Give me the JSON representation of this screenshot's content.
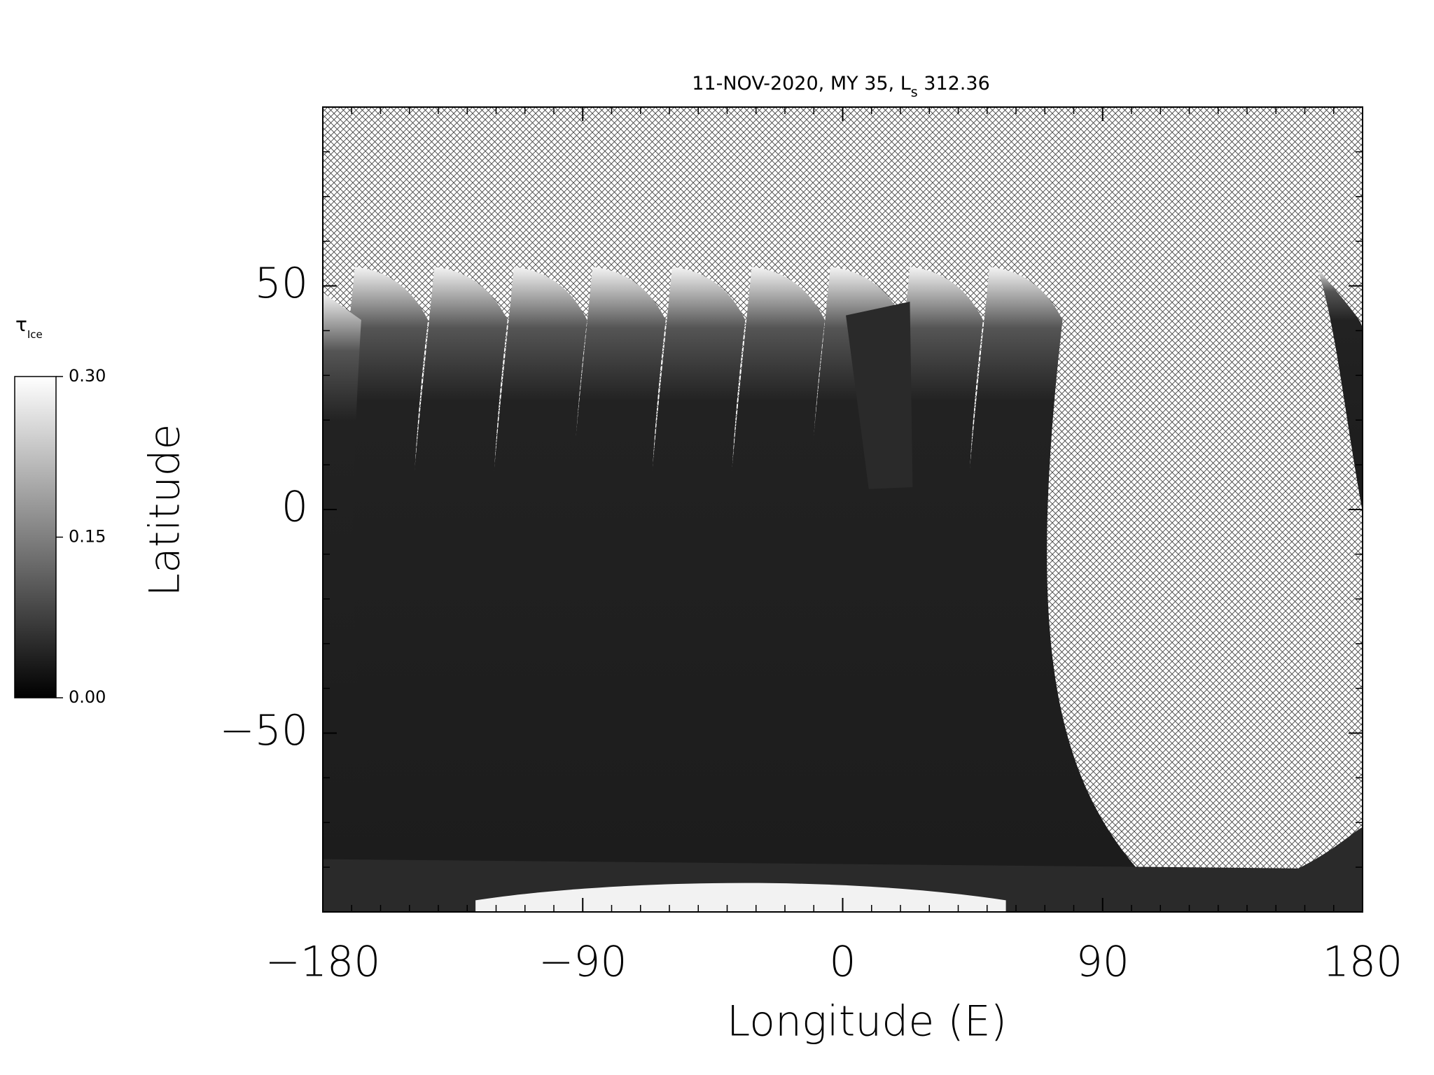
{
  "chart_data": {
    "type": "map",
    "title": {
      "main": "11-NOV-2020, MY 35,  L",
      "subscript": "s",
      "value": " 312.36"
    },
    "xlabel": "Longitude (E)",
    "ylabel": "Latitude",
    "xlim": [
      -180,
      180
    ],
    "ylim": [
      -90,
      90
    ],
    "xticks": [
      {
        "value": -180,
        "label": "−180"
      },
      {
        "value": -90,
        "label": "−90"
      },
      0,
      90,
      180
    ],
    "yticks": [
      {
        "value": -50,
        "label": "−50"
      },
      0,
      50
    ],
    "xminorticks": [
      -170,
      -160,
      -150,
      -140,
      -130,
      -120,
      -110,
      -100,
      -80,
      -70,
      -60,
      -50,
      -40,
      -30,
      -20,
      -10,
      10,
      20,
      30,
      40,
      50,
      60,
      70,
      80,
      100,
      110,
      120,
      130,
      140,
      150,
      160,
      170
    ],
    "yminorticks": [
      -80,
      -70,
      -60,
      -40,
      -30,
      -20,
      -10,
      10,
      20,
      30,
      40,
      60,
      70,
      80
    ],
    "colorbar": {
      "label": {
        "main": "τ",
        "subscript": "Ice"
      },
      "clim": [
        0,
        0.3
      ],
      "ticks": [
        {
          "value": 0,
          "label": "0.00"
        },
        {
          "value": 0.15,
          "label": "0.15"
        },
        {
          "value": 0.3,
          "label": "0.30"
        }
      ]
    }
  }
}
